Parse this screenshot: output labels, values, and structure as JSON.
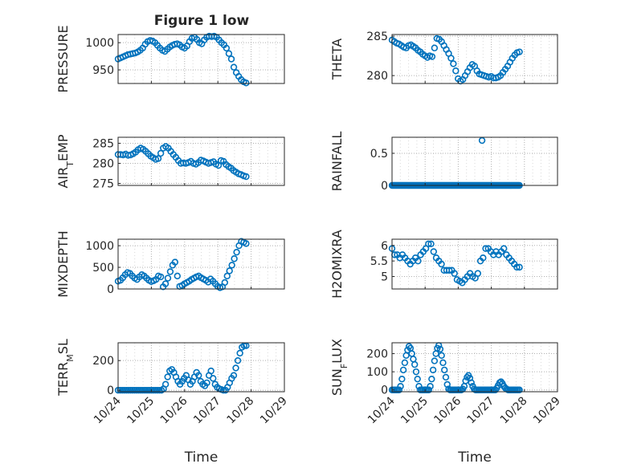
{
  "figure": {
    "title": "Figure 1 low"
  },
  "style": {
    "marker_color": "#0072BD",
    "axis_color": "#262626",
    "grid_color": "#b0b0b0",
    "background": "#ffffff"
  },
  "chart_data": [
    {
      "id": "pressure",
      "type": "scatter",
      "marker": "circle-open",
      "title": "Figure 1 low",
      "ylabel": "PRESSURE",
      "xlabel": "",
      "show_xticklabels": false,
      "xlim": [
        "10/24",
        "10/29"
      ],
      "xticks": [
        "10/24",
        "10/25",
        "10/26",
        "10/27",
        "10/28",
        "10/29"
      ],
      "ylim": [
        925,
        1015
      ],
      "yticks": [
        950,
        1000
      ],
      "grid": "dotted",
      "x_start": "10/24",
      "x_end": "10/27.85",
      "y": [
        970,
        972,
        974,
        976,
        978,
        979,
        980,
        981,
        983,
        986,
        990,
        997,
        1002,
        1004,
        1003,
        1000,
        995,
        990,
        986,
        984,
        988,
        992,
        995,
        997,
        998,
        996,
        992,
        990,
        994,
        1002,
        1008,
        1010,
        1006,
        1000,
        998,
        1005,
        1010,
        1012,
        1011,
        1012,
        1010,
        1005,
        1000,
        996,
        990,
        980,
        970,
        955,
        945,
        938,
        932,
        928,
        926
      ]
    },
    {
      "id": "theta",
      "type": "scatter",
      "marker": "circle-open",
      "ylabel": "THETA",
      "xlabel": "",
      "show_xticklabels": false,
      "xlim": [
        "10/24",
        "10/29"
      ],
      "xticks": [
        "10/24",
        "10/25",
        "10/26",
        "10/27",
        "10/28",
        "10/29"
      ],
      "ylim": [
        279,
        285.2
      ],
      "yticks": [
        280,
        285
      ],
      "grid": "dotted",
      "x_start": "10/24",
      "x_end": "10/27.85",
      "y": [
        284.5,
        284.3,
        284.1,
        284.0,
        283.8,
        283.6,
        283.5,
        283.8,
        283.9,
        283.7,
        283.5,
        283.2,
        283.0,
        282.7,
        282.5,
        282.3,
        282.5,
        282.4,
        283.5,
        284.7,
        284.6,
        284.3,
        283.8,
        283.3,
        282.8,
        282.2,
        281.5,
        280.6,
        279.6,
        279.3,
        279.5,
        280.0,
        280.5,
        281.0,
        281.4,
        281.2,
        280.6,
        280.2,
        280.1,
        280.0,
        279.9,
        279.8,
        279.9,
        279.7,
        279.7,
        279.8,
        280.0,
        280.4,
        280.8,
        281.2,
        281.7,
        282.2,
        282.6,
        282.9,
        283.0
      ]
    },
    {
      "id": "air_temp",
      "type": "scatter",
      "marker": "circle-open",
      "ylabel": "AIR",
      "ylabel_sub": "T",
      "ylabel_rest": "EMP",
      "xlabel": "",
      "show_xticklabels": false,
      "xlim": [
        "10/24",
        "10/29"
      ],
      "xticks": [
        "10/24",
        "10/25",
        "10/26",
        "10/27",
        "10/28",
        "10/29"
      ],
      "ylim": [
        274.5,
        286.5
      ],
      "yticks": [
        275,
        280,
        285
      ],
      "grid": "dotted",
      "x_start": "10/24",
      "x_end": "10/27.85",
      "y": [
        282.2,
        282.2,
        282.1,
        282.3,
        282.0,
        282.1,
        282.4,
        282.8,
        283.4,
        283.8,
        283.5,
        283.0,
        282.4,
        281.8,
        281.4,
        281.0,
        281.2,
        282.5,
        283.8,
        284.2,
        283.8,
        283.0,
        282.2,
        281.5,
        280.7,
        280.0,
        280.1,
        280.0,
        280.2,
        280.5,
        280.0,
        279.8,
        280.2,
        280.8,
        280.6,
        280.3,
        280.0,
        280.2,
        280.4,
        279.8,
        279.5,
        280.7,
        280.5,
        279.7,
        279.2,
        278.8,
        278.2,
        277.8,
        277.4,
        277.2,
        276.9,
        276.7
      ]
    },
    {
      "id": "rainfall",
      "type": "scatter",
      "marker": "circle-open",
      "ylabel": "RAINFALL",
      "xlabel": "",
      "show_xticklabels": false,
      "xlim": [
        "10/24",
        "10/29"
      ],
      "xticks": [
        "10/24",
        "10/25",
        "10/26",
        "10/27",
        "10/28",
        "10/29"
      ],
      "ylim": [
        0,
        0.75
      ],
      "yticks": [
        0,
        0.5
      ],
      "grid": "dotted",
      "x_start": "10/24",
      "x_end": "10/27.85",
      "y": [
        0,
        0,
        0,
        0,
        0,
        0,
        0,
        0,
        0,
        0,
        0,
        0,
        0,
        0,
        0,
        0,
        0,
        0,
        0,
        0,
        0,
        0,
        0,
        0,
        0,
        0,
        0,
        0,
        0,
        0,
        0,
        0,
        0,
        0,
        0,
        0,
        0,
        0,
        0,
        0,
        0,
        0,
        0,
        0,
        0,
        0,
        0,
        0,
        0,
        0,
        0,
        0,
        0,
        0,
        0,
        0,
        0,
        0,
        0,
        0,
        0,
        0,
        0,
        0,
        0,
        0,
        0,
        0,
        0,
        0,
        0,
        0,
        0,
        0,
        0,
        0,
        0,
        0,
        0,
        0,
        0,
        0,
        0,
        0,
        0,
        0,
        0,
        0,
        0,
        0,
        0,
        0,
        0,
        0,
        0,
        0,
        0,
        0,
        0,
        0,
        0,
        0,
        0,
        0,
        0,
        0,
        0,
        0,
        0,
        0,
        0,
        0,
        0,
        0,
        0,
        0,
        0,
        0,
        0,
        0,
        0,
        0,
        0,
        0,
        0,
        0,
        0,
        0,
        0,
        0,
        0,
        0,
        0,
        0,
        0,
        0,
        0,
        0,
        0,
        0,
        0,
        0,
        0,
        0,
        0,
        0,
        0,
        0,
        0
      ],
      "extra_points": [
        {
          "x": "10/26.72",
          "y": 0.7
        }
      ]
    },
    {
      "id": "mixdepth",
      "type": "scatter",
      "marker": "circle-open",
      "ylabel": "MIXDEPTH",
      "xlabel": "",
      "show_xticklabels": false,
      "xlim": [
        "10/24",
        "10/29"
      ],
      "xticks": [
        "10/24",
        "10/25",
        "10/26",
        "10/27",
        "10/28",
        "10/29"
      ],
      "ylim": [
        0,
        1150
      ],
      "yticks": [
        0,
        500,
        1000
      ],
      "grid": "dotted",
      "x_start": "10/24",
      "x_end": "10/27.85",
      "y": [
        180,
        200,
        260,
        330,
        380,
        360,
        300,
        250,
        220,
        280,
        330,
        300,
        250,
        200,
        170,
        190,
        220,
        300,
        280,
        50,
        120,
        250,
        400,
        550,
        620,
        300,
        60,
        80,
        120,
        150,
        180,
        220,
        250,
        280,
        300,
        260,
        230,
        200,
        160,
        230,
        180,
        120,
        60,
        30,
        50,
        150,
        300,
        420,
        550,
        700,
        850,
        1000,
        1100,
        1080,
        1050
      ]
    },
    {
      "id": "h2omixra",
      "type": "scatter",
      "marker": "circle-open",
      "ylabel": "H2OMIXRA",
      "xlabel": "",
      "show_xticklabels": false,
      "xlim": [
        "10/24",
        "10/29"
      ],
      "xticks": [
        "10/24",
        "10/25",
        "10/26",
        "10/27",
        "10/28",
        "10/29"
      ],
      "ylim": [
        4.6,
        6.2
      ],
      "yticks": [
        5,
        5.5,
        6
      ],
      "grid": "dotted",
      "x_start": "10/24",
      "x_end": "10/27.85",
      "y": [
        5.9,
        5.7,
        5.7,
        5.6,
        5.7,
        5.6,
        5.5,
        5.4,
        5.5,
        5.6,
        5.5,
        5.7,
        5.8,
        5.9,
        6.05,
        6.05,
        5.8,
        5.6,
        5.5,
        5.4,
        5.2,
        5.2,
        5.2,
        5.2,
        5.1,
        4.9,
        4.85,
        4.8,
        4.9,
        5.0,
        5.1,
        5.0,
        4.95,
        5.1,
        5.5,
        5.6,
        5.9,
        5.9,
        5.8,
        5.7,
        5.8,
        5.7,
        5.8,
        5.9,
        5.7,
        5.6,
        5.5,
        5.4,
        5.3,
        5.3
      ]
    },
    {
      "id": "terr_msl",
      "type": "scatter",
      "marker": "circle-open",
      "ylabel": "TERR",
      "ylabel_sub": "M",
      "ylabel_rest": "SL",
      "xlabel": "Time",
      "show_xticklabels": true,
      "xlim": [
        "10/24",
        "10/29"
      ],
      "xticks": [
        "10/24",
        "10/25",
        "10/26",
        "10/27",
        "10/28",
        "10/29"
      ],
      "ylim": [
        -10,
        320
      ],
      "yticks": [
        0,
        200
      ],
      "grid": "dotted",
      "x_start": "10/24",
      "x_end": "10/27.85",
      "y": [
        0,
        0,
        0,
        0,
        0,
        0,
        0,
        0,
        0,
        0,
        0,
        0,
        0,
        0,
        0,
        0,
        0,
        0,
        0,
        0,
        0,
        0,
        10,
        40,
        90,
        130,
        140,
        120,
        90,
        60,
        40,
        60,
        80,
        100,
        70,
        40,
        60,
        90,
        120,
        100,
        60,
        40,
        30,
        50,
        100,
        130,
        80,
        40,
        20,
        10,
        5,
        0,
        0,
        20,
        50,
        80,
        100,
        150,
        200,
        250,
        290,
        300,
        300
      ]
    },
    {
      "id": "sun_flux",
      "type": "scatter",
      "marker": "circle-open",
      "ylabel": "SUN",
      "ylabel_sub": "F",
      "ylabel_rest": "LUX",
      "xlabel": "Time",
      "show_xticklabels": true,
      "xlim": [
        "10/24",
        "10/29"
      ],
      "xticks": [
        "10/24",
        "10/25",
        "10/26",
        "10/27",
        "10/28",
        "10/29"
      ],
      "ylim": [
        -10,
        260
      ],
      "yticks": [
        0,
        100,
        200
      ],
      "grid": "dotted",
      "x_start": "10/24",
      "x_end": "10/27.85",
      "y": [
        0,
        0,
        0,
        0,
        0,
        0,
        20,
        60,
        110,
        150,
        190,
        220,
        240,
        230,
        200,
        170,
        140,
        100,
        60,
        20,
        0,
        0,
        0,
        0,
        0,
        0,
        0,
        20,
        60,
        110,
        160,
        200,
        230,
        245,
        225,
        190,
        150,
        110,
        70,
        30,
        5,
        0,
        0,
        0,
        0,
        0,
        0,
        0,
        0,
        0,
        5,
        20,
        50,
        70,
        80,
        65,
        40,
        20,
        5,
        0,
        0,
        0,
        0,
        0,
        0,
        0,
        0,
        0,
        0,
        0,
        0,
        0,
        0,
        0,
        10,
        25,
        40,
        45,
        35,
        20,
        10,
        5,
        0,
        0,
        0,
        0,
        0,
        0,
        0,
        0,
        0
      ]
    }
  ]
}
